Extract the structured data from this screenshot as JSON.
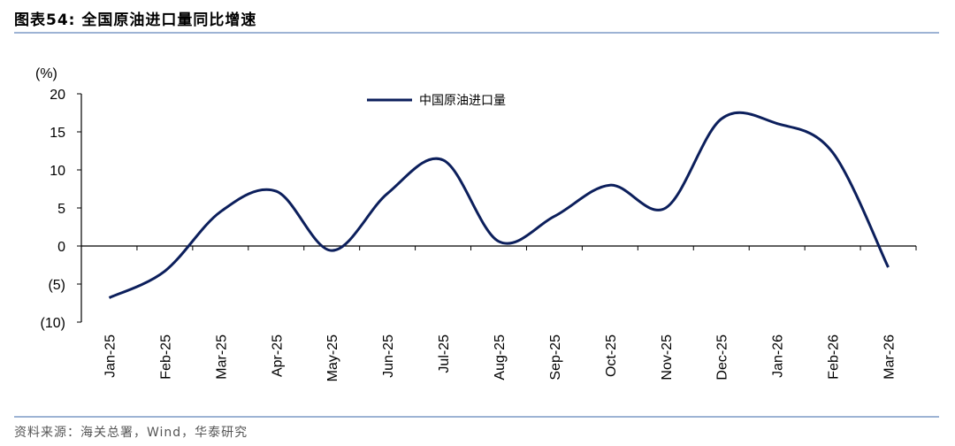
{
  "figure": {
    "title": "图表54:  全国原油进口量同比增速",
    "source": "资料来源：海关总署，Wind，华泰研究"
  },
  "chart_data": {
    "type": "line",
    "unit_label": "(%)",
    "categories": [
      "Jan-25",
      "Feb-25",
      "Mar-25",
      "Apr-25",
      "May-25",
      "Jun-25",
      "Jul-25",
      "Aug-25",
      "Sep-25",
      "Oct-25",
      "Nov-25",
      "Dec-25",
      "Jan-26",
      "Feb-26",
      "Mar-26"
    ],
    "series": [
      {
        "name": "中国原油进口量",
        "color": "#0c1f5c",
        "values": [
          -6.8,
          -3.3,
          4.5,
          7.2,
          -0.6,
          6.9,
          11.3,
          0.6,
          3.9,
          8.0,
          5.0,
          16.7,
          16.1,
          12.3,
          -2.8
        ]
      }
    ],
    "ylim": [
      -10,
      20
    ],
    "yticks": [
      20,
      15,
      10,
      5,
      0,
      -5,
      -10
    ],
    "ytick_labels": [
      "20",
      "15",
      "10",
      "5",
      "0",
      "(5)",
      "(10)"
    ],
    "legend_position": "top-center",
    "grid": false
  }
}
